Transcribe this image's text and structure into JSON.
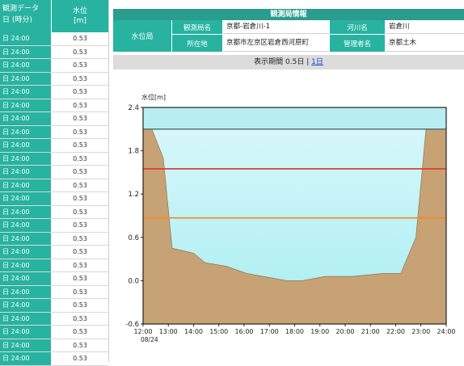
{
  "left_table": {
    "header_time": "観測データ",
    "header_time_sub": "日 (時分)",
    "header_value": "水位",
    "header_value_unit": "[m]",
    "rows": [
      {
        "time": "日 24:00",
        "value": "0.53"
      },
      {
        "time": "日 24:00",
        "value": "0.53"
      },
      {
        "time": "日 24:00",
        "value": "0.53"
      },
      {
        "time": "日 24:00",
        "value": "0.53"
      },
      {
        "time": "日 24:00",
        "value": "0.53"
      },
      {
        "time": "日 24:00",
        "value": "0.53"
      },
      {
        "time": "日 24:00",
        "value": "0.53"
      },
      {
        "time": "日 24:00",
        "value": "0.53"
      },
      {
        "time": "日 24:00",
        "value": "0.53"
      },
      {
        "time": "日 24:00",
        "value": "0.53"
      },
      {
        "time": "日 24:00",
        "value": "0.53"
      },
      {
        "time": "日 24:00",
        "value": "0.53"
      },
      {
        "time": "日 24:00",
        "value": "0.53"
      },
      {
        "time": "日 24:00",
        "value": "0.53"
      },
      {
        "time": "日 24:00",
        "value": "0.53"
      },
      {
        "time": "日 24:00",
        "value": "0.53"
      },
      {
        "time": "日 24:00",
        "value": "0.53"
      },
      {
        "time": "日 24:00",
        "value": "0.53"
      },
      {
        "time": "日 24:00",
        "value": "0.53"
      },
      {
        "time": "日 24:00",
        "value": "0.53"
      },
      {
        "time": "日 24:00",
        "value": "0.53"
      },
      {
        "time": "日 24:00",
        "value": "0.53"
      },
      {
        "time": "日 24:00",
        "value": "0.53"
      },
      {
        "time": "日 24:00",
        "value": "0.53"
      },
      {
        "time": "日 24:00",
        "value": "0.53"
      }
    ]
  },
  "station_info": {
    "title": "観測局情報",
    "station_type": "水位局",
    "label_name": "観測局名",
    "value_name": "京都-岩倉川-1",
    "label_river": "河川名",
    "value_river": "岩倉川",
    "label_location": "所在地",
    "value_location": "京都市左京区岩倉西河原町",
    "label_manager": "管理者名",
    "value_manager": "京都土木"
  },
  "period": {
    "label": "表示期間",
    "current": "0.5日",
    "separator": "|",
    "link": "1日"
  },
  "chart_data": {
    "type": "area",
    "ylabel": "水位[m]",
    "ylim": [
      -0.6,
      2.4
    ],
    "yticks": [
      "2.4",
      "1.8",
      "1.2",
      "0.6",
      "0.0",
      "-0.6"
    ],
    "xticks": [
      "12:00",
      "13:00",
      "14:00",
      "15:00",
      "16:00",
      "17:00",
      "18:00",
      "19:00",
      "20:00",
      "21:00",
      "22:00",
      "23:00",
      "24:00"
    ],
    "xsub": "08/24",
    "water_level": 2.1,
    "warning_levels": [
      {
        "value": 1.55,
        "color": "#e0342a"
      },
      {
        "value": 0.87,
        "color": "#f08a1c"
      }
    ],
    "colors": {
      "ground": "#c6a274",
      "water_upper": "#d6f7fa",
      "water_lower": "#a8eef2",
      "frame_top": "#b8eef2"
    },
    "riverbed_profile": {
      "x": [
        0,
        0.35,
        0.8,
        1.15,
        2.0,
        2.45,
        3.3,
        4.1,
        5.7,
        6.3,
        7.2,
        8.3,
        9.5,
        10.2,
        10.8,
        11.2,
        12.0
      ],
      "y": [
        2.1,
        2.1,
        1.7,
        0.45,
        0.38,
        0.25,
        0.2,
        0.1,
        0.0,
        0.0,
        0.06,
        0.06,
        0.1,
        0.1,
        0.6,
        2.1,
        2.1
      ]
    }
  }
}
